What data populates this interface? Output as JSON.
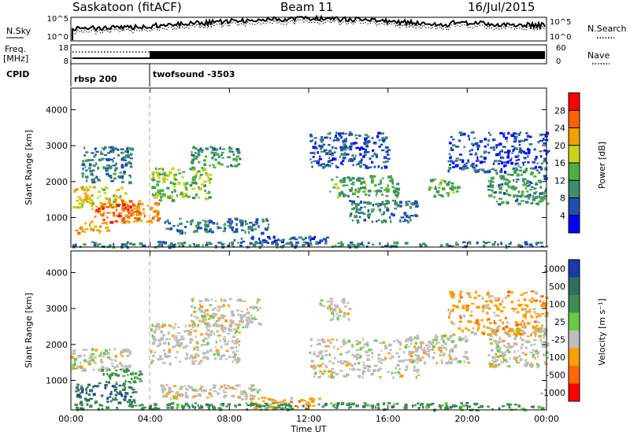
{
  "header": {
    "station": "Saskatoon (fitACF)",
    "beam": "Beam 11",
    "date": "16/Jul/2015"
  },
  "params_panel": {
    "nsky_label": "N.Sky",
    "nsearch_label": "N.Search",
    "nave_label": "Nave",
    "freq_label_line1": "Freq.",
    "freq_label_line2": "[MHz]",
    "cpid_label": "CPID",
    "noise_ticks_left": [
      "10^5",
      "10^0"
    ],
    "noise_ticks_right": [
      "10^5",
      "10^0"
    ],
    "freq_ticks_left": [
      "18",
      "8"
    ],
    "nave_ticks_right": [
      "60",
      "0"
    ],
    "cpid_entries": [
      {
        "name": "rbsp 200",
        "start_hour": 0
      },
      {
        "name": "twofsound -3503",
        "start_hour": 4
      }
    ]
  },
  "colors": {
    "power_scale": [
      "#0000ff",
      "#1e4fb0",
      "#3d8c6b",
      "#4fae43",
      "#c8d41a",
      "#f0a000",
      "#ff6000",
      "#ff0000"
    ],
    "velocity_scale": [
      "#1a3aa8",
      "#2f6f5f",
      "#3d8c4f",
      "#66cc44",
      "#bdbdbd",
      "#ff9f00",
      "#ff6a00",
      "#ff0000"
    ]
  },
  "chart_data": [
    {
      "type": "heatmap",
      "name": "power",
      "ylabel": "Slant Range [km]",
      "xlabel": "",
      "xlim": [
        0,
        24
      ],
      "ylim": [
        180,
        4600
      ],
      "x_ticks": [
        0,
        4,
        8,
        12,
        16,
        20,
        24
      ],
      "y_ticks": [
        1000,
        2000,
        3000,
        4000
      ],
      "colorbar": {
        "label": "Power [dB]",
        "ticks": [
          "4",
          "8",
          "12",
          "16",
          "20",
          "24",
          "28"
        ],
        "range": [
          0,
          30
        ]
      },
      "regions": [
        {
          "t0": 0.0,
          "t1": 2.8,
          "r0": 1300,
          "r1": 1900,
          "level": 18
        },
        {
          "t0": 1.0,
          "t1": 3.5,
          "r0": 900,
          "r1": 1400,
          "level": 24
        },
        {
          "t0": 0.2,
          "t1": 1.8,
          "r0": 600,
          "r1": 900,
          "level": 20
        },
        {
          "t0": 2.5,
          "t1": 4.5,
          "r0": 900,
          "r1": 1500,
          "level": 22
        },
        {
          "t0": 0.5,
          "t1": 3.0,
          "r0": 2000,
          "r1": 3000,
          "level": 8
        },
        {
          "t0": 4.0,
          "t1": 7.0,
          "r0": 1500,
          "r1": 2400,
          "level": 14
        },
        {
          "t0": 6.0,
          "t1": 8.5,
          "r0": 2400,
          "r1": 3000,
          "level": 10
        },
        {
          "t0": 4.5,
          "t1": 10.0,
          "r0": 600,
          "r1": 1000,
          "level": 8
        },
        {
          "t0": 8.0,
          "t1": 13.0,
          "r0": 300,
          "r1": 500,
          "level": 6
        },
        {
          "t0": 13.0,
          "t1": 16.5,
          "r0": 1600,
          "r1": 2200,
          "level": 12
        },
        {
          "t0": 14.0,
          "t1": 17.5,
          "r0": 900,
          "r1": 1500,
          "level": 8
        },
        {
          "t0": 12.0,
          "t1": 16.0,
          "r0": 2400,
          "r1": 3400,
          "level": 6
        },
        {
          "t0": 18.0,
          "t1": 19.5,
          "r0": 1600,
          "r1": 2100,
          "level": 12
        },
        {
          "t0": 21.0,
          "t1": 24.0,
          "r0": 1400,
          "r1": 2400,
          "level": 10
        },
        {
          "t0": 19.0,
          "t1": 24.0,
          "r0": 2300,
          "r1": 3400,
          "level": 5
        },
        {
          "t0": 0.0,
          "t1": 24.0,
          "r0": 200,
          "r1": 350,
          "level": 8
        }
      ]
    },
    {
      "type": "heatmap",
      "name": "velocity",
      "ylabel": "Slant Range [km]",
      "xlabel": "Time UT",
      "xlim": [
        0,
        24
      ],
      "ylim": [
        180,
        4600
      ],
      "x_ticks": [
        0,
        4,
        8,
        12,
        16,
        20,
        24
      ],
      "x_tick_labels": [
        "00:00",
        "04:00",
        "08:00",
        "12:00",
        "16:00",
        "20:00",
        "00:00"
      ],
      "y_ticks": [
        1000,
        2000,
        3000,
        4000
      ],
      "colorbar": {
        "label": "Velocity [m s⁻¹]",
        "ticks": [
          "1000",
          "500",
          "100",
          "25",
          "-25",
          "-100",
          "-500",
          "-1000"
        ]
      },
      "regions": [
        {
          "t0": 0.0,
          "t1": 3.0,
          "r0": 1300,
          "r1": 1900,
          "category": "-25"
        },
        {
          "t0": 0.2,
          "t1": 3.2,
          "r0": 400,
          "r1": 950,
          "category": "500"
        },
        {
          "t0": 1.5,
          "t1": 3.5,
          "r0": 950,
          "r1": 1350,
          "category": "100"
        },
        {
          "t0": 4.0,
          "t1": 8.5,
          "r0": 1500,
          "r1": 2600,
          "category": "-25"
        },
        {
          "t0": 6.0,
          "t1": 9.5,
          "r0": 2500,
          "r1": 3300,
          "category": "-25"
        },
        {
          "t0": 4.5,
          "t1": 9.5,
          "r0": 500,
          "r1": 900,
          "category": "-25"
        },
        {
          "t0": 9.0,
          "t1": 12.5,
          "r0": 250,
          "r1": 550,
          "category": "-100"
        },
        {
          "t0": 12.0,
          "t1": 17.5,
          "r0": 1100,
          "r1": 2200,
          "category": "-25"
        },
        {
          "t0": 12.5,
          "t1": 14.0,
          "r0": 2700,
          "r1": 3300,
          "category": "-25"
        },
        {
          "t0": 17.0,
          "t1": 20.0,
          "r0": 1500,
          "r1": 2300,
          "category": "-25"
        },
        {
          "t0": 21.0,
          "t1": 24.0,
          "r0": 1400,
          "r1": 2500,
          "category": "-25"
        },
        {
          "t0": 0.0,
          "t1": 24.0,
          "r0": 200,
          "r1": 400,
          "category": "100"
        },
        {
          "t0": 19.0,
          "t1": 24.0,
          "r0": 2300,
          "r1": 3500,
          "category": "-100"
        }
      ]
    }
  ]
}
